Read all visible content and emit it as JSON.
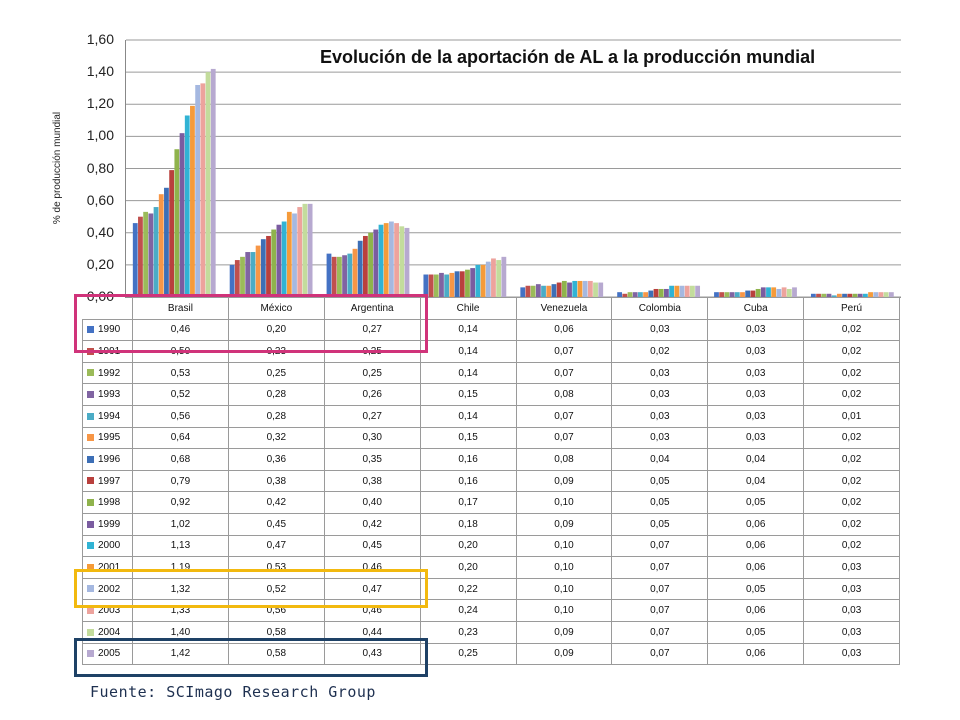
{
  "title": "Evolución de la aportación de AL a la producción mundial",
  "source_note": "Fuente: SCImago Research Group",
  "chart_data": {
    "type": "bar",
    "title": "Evolución de la aportación de AL a la producción mundial",
    "xlabel": "",
    "ylabel": "% de producción mundial",
    "ylim": [
      0,
      1.6
    ],
    "yticks": [
      "0,00",
      "0,20",
      "0,40",
      "0,60",
      "0,80",
      "1,00",
      "1,20",
      "1,40",
      "1,60"
    ],
    "grid": true,
    "legend_placement": "data table rows",
    "categories": [
      "Brasil",
      "México",
      "Argentina",
      "Chile",
      "Venezuela",
      "Colombia",
      "Cuba",
      "Perú"
    ],
    "series": [
      {
        "name": "1990",
        "color": "#4472c4",
        "values": [
          0.46,
          0.2,
          0.27,
          0.14,
          0.06,
          0.03,
          0.03,
          0.02
        ],
        "labels": [
          "0,46",
          "0,20",
          "0,27",
          "0,14",
          "0,06",
          "0,03",
          "0,03",
          "0,02"
        ]
      },
      {
        "name": "1991",
        "color": "#c0504d",
        "values": [
          0.5,
          0.23,
          0.25,
          0.14,
          0.07,
          0.02,
          0.03,
          0.02
        ],
        "labels": [
          "0,50",
          "0,23",
          "0,25",
          "0,14",
          "0,07",
          "0,02",
          "0,03",
          "0,02"
        ]
      },
      {
        "name": "1992",
        "color": "#9bbb59",
        "values": [
          0.53,
          0.25,
          0.25,
          0.14,
          0.07,
          0.03,
          0.03,
          0.02
        ],
        "labels": [
          "0,53",
          "0,25",
          "0,25",
          "0,14",
          "0,07",
          "0,03",
          "0,03",
          "0,02"
        ]
      },
      {
        "name": "1993",
        "color": "#8064a2",
        "values": [
          0.52,
          0.28,
          0.26,
          0.15,
          0.08,
          0.03,
          0.03,
          0.02
        ],
        "labels": [
          "0,52",
          "0,28",
          "0,26",
          "0,15",
          "0,08",
          "0,03",
          "0,03",
          "0,02"
        ]
      },
      {
        "name": "1994",
        "color": "#4bacc6",
        "values": [
          0.56,
          0.28,
          0.27,
          0.14,
          0.07,
          0.03,
          0.03,
          0.01
        ],
        "labels": [
          "0,56",
          "0,28",
          "0,27",
          "0,14",
          "0,07",
          "0,03",
          "0,03",
          "0,01"
        ]
      },
      {
        "name": "1995",
        "color": "#f79646",
        "values": [
          0.64,
          0.32,
          0.3,
          0.15,
          0.07,
          0.03,
          0.03,
          0.02
        ],
        "labels": [
          "0,64",
          "0,32",
          "0,30",
          "0,15",
          "0,07",
          "0,03",
          "0,03",
          "0,02"
        ]
      },
      {
        "name": "1996",
        "color": "#3d6fb6",
        "values": [
          0.68,
          0.36,
          0.35,
          0.16,
          0.08,
          0.04,
          0.04,
          0.02
        ],
        "labels": [
          "0,68",
          "0,36",
          "0,35",
          "0,16",
          "0,08",
          "0,04",
          "0,04",
          "0,02"
        ]
      },
      {
        "name": "1997",
        "color": "#b9403d",
        "values": [
          0.79,
          0.38,
          0.38,
          0.16,
          0.09,
          0.05,
          0.04,
          0.02
        ],
        "labels": [
          "0,79",
          "0,38",
          "0,38",
          "0,16",
          "0,09",
          "0,05",
          "0,04",
          "0,02"
        ]
      },
      {
        "name": "1998",
        "color": "#8fb34c",
        "values": [
          0.92,
          0.42,
          0.4,
          0.17,
          0.1,
          0.05,
          0.05,
          0.02
        ],
        "labels": [
          "0,92",
          "0,42",
          "0,40",
          "0,17",
          "0,10",
          "0,05",
          "0,05",
          "0,02"
        ]
      },
      {
        "name": "1999",
        "color": "#7a5ca0",
        "values": [
          1.02,
          0.45,
          0.42,
          0.18,
          0.09,
          0.05,
          0.06,
          0.02
        ],
        "labels": [
          "1,02",
          "0,45",
          "0,42",
          "0,18",
          "0,09",
          "0,05",
          "0,06",
          "0,02"
        ]
      },
      {
        "name": "2000",
        "color": "#31b3d4",
        "values": [
          1.13,
          0.47,
          0.45,
          0.2,
          0.1,
          0.07,
          0.06,
          0.02
        ],
        "labels": [
          "1,13",
          "0,47",
          "0,45",
          "0,20",
          "0,10",
          "0,07",
          "0,06",
          "0,02"
        ]
      },
      {
        "name": "2001",
        "color": "#f59b3a",
        "values": [
          1.19,
          0.53,
          0.46,
          0.2,
          0.1,
          0.07,
          0.06,
          0.03
        ],
        "labels": [
          "1,19",
          "0,53",
          "0,46",
          "0,20",
          "0,10",
          "0,07",
          "0,06",
          "0,03"
        ]
      },
      {
        "name": "2002",
        "color": "#a5b8e0",
        "values": [
          1.32,
          0.52,
          0.47,
          0.22,
          0.1,
          0.07,
          0.05,
          0.03
        ],
        "labels": [
          "1,32",
          "0,52",
          "0,47",
          "0,22",
          "0,10",
          "0,07",
          "0,05",
          "0,03"
        ]
      },
      {
        "name": "2003",
        "color": "#eda39d",
        "values": [
          1.33,
          0.56,
          0.46,
          0.24,
          0.1,
          0.07,
          0.06,
          0.03
        ],
        "labels": [
          "1,33",
          "0,56",
          "0,46",
          "0,24",
          "0,10",
          "0,07",
          "0,06",
          "0,03"
        ]
      },
      {
        "name": "2004",
        "color": "#c3dc9c",
        "values": [
          1.4,
          0.58,
          0.44,
          0.23,
          0.09,
          0.07,
          0.05,
          0.03
        ],
        "labels": [
          "1,40",
          "0,58",
          "0,44",
          "0,23",
          "0,09",
          "0,07",
          "0,05",
          "0,03"
        ]
      },
      {
        "name": "2005",
        "color": "#b7a9d0",
        "values": [
          1.42,
          0.58,
          0.43,
          0.25,
          0.09,
          0.07,
          0.06,
          0.03
        ],
        "labels": [
          "1,42",
          "0,58",
          "0,43",
          "0,25",
          "0,09",
          "0,07",
          "0,06",
          "0,03"
        ]
      }
    ]
  },
  "highlight_colors": {
    "first": "#d0337a",
    "second": "#f2b90f",
    "third": "#1e4166"
  }
}
